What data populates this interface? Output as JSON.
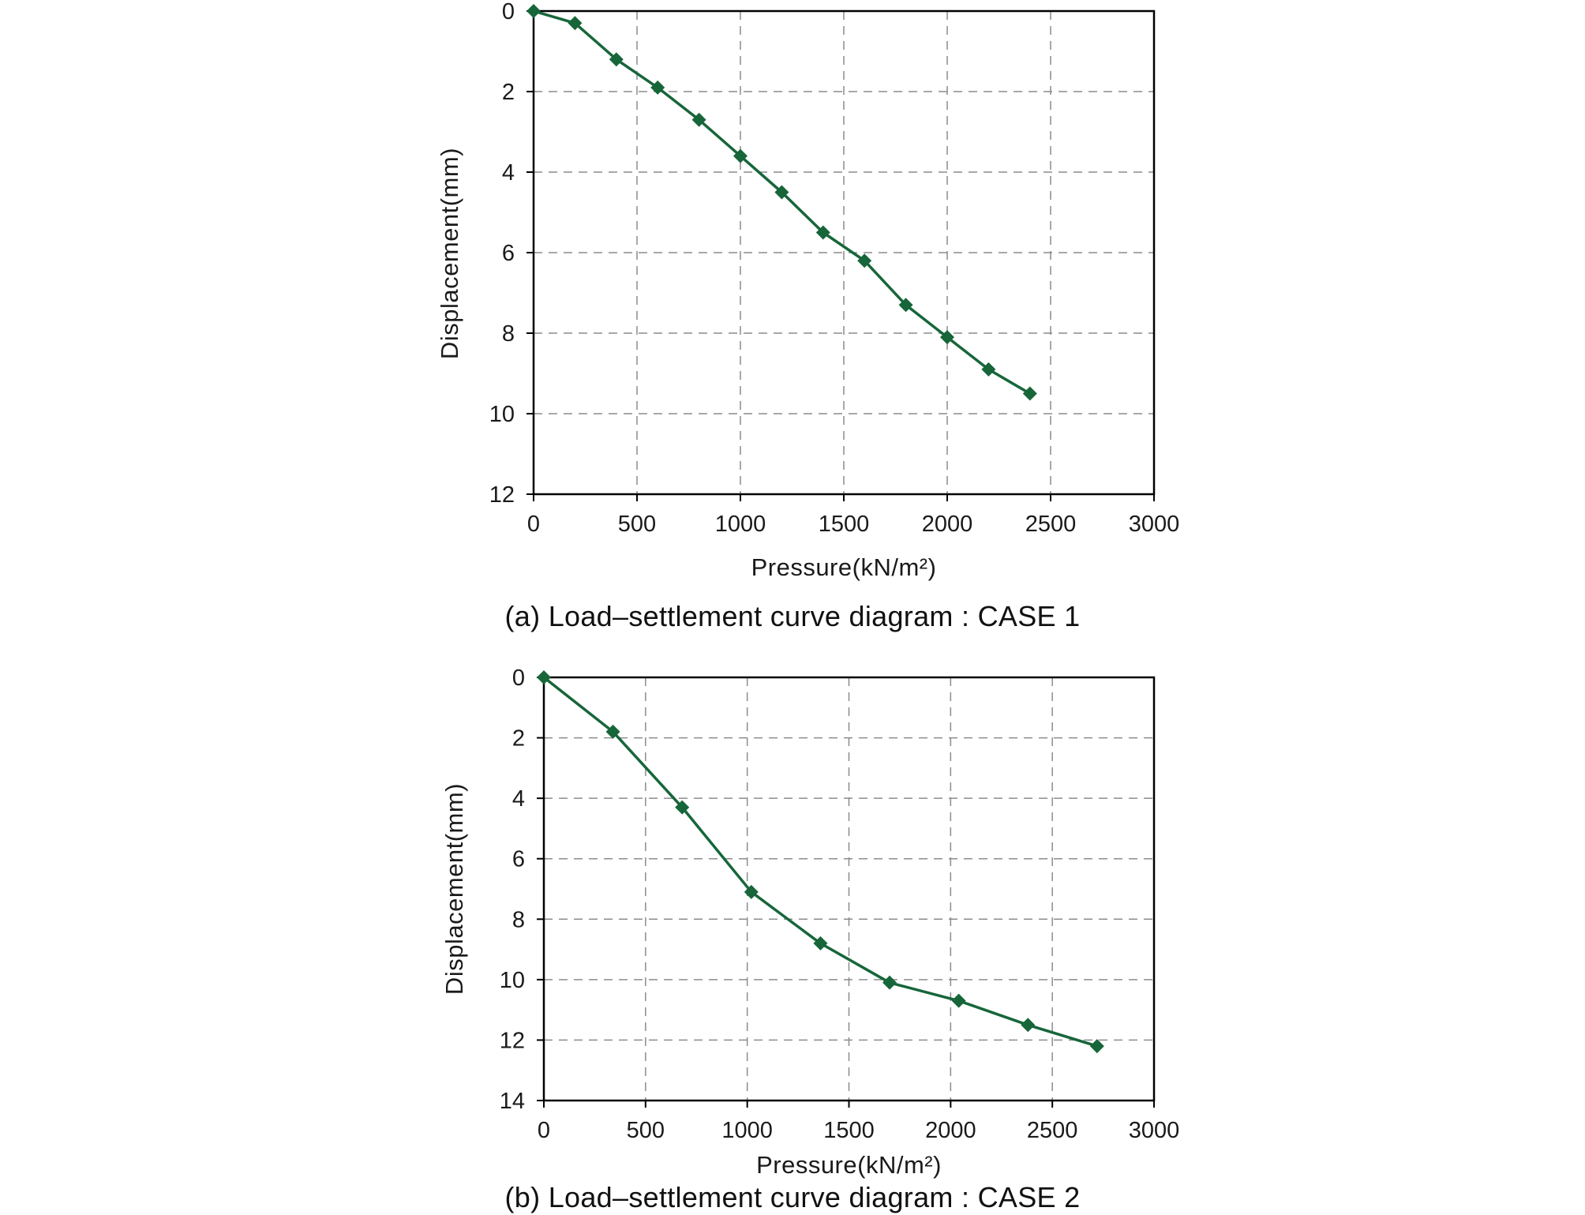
{
  "page": {
    "background": "#ffffff",
    "text_color": "#1a1a1a"
  },
  "chart_data": [
    {
      "type": "line",
      "title": "(a) Load–settlement curve diagram : CASE 1",
      "xlabel": "Pressure(kN/m²)",
      "ylabel": "Displacement(mm)",
      "xlim": [
        0,
        3000
      ],
      "ylim": [
        0,
        12
      ],
      "y_inverted": true,
      "x_ticks": [
        0,
        500,
        1000,
        1500,
        2000,
        2500,
        3000
      ],
      "y_ticks": [
        0,
        2,
        4,
        6,
        8,
        10,
        12
      ],
      "grid": "dashed",
      "grid_color": "#8c8c8c",
      "legend": "none",
      "series": [
        {
          "name": "CASE 1",
          "marker": "diamond",
          "color": "#17663a",
          "x": [
            0,
            200,
            400,
            600,
            800,
            1000,
            1200,
            1400,
            1600,
            1800,
            2000,
            2200,
            2400
          ],
          "y": [
            0,
            0.3,
            1.2,
            1.9,
            2.7,
            3.6,
            4.5,
            5.5,
            6.2,
            7.3,
            8.1,
            8.9,
            9.5
          ]
        }
      ]
    },
    {
      "type": "line",
      "title": "(b) Load–settlement curve diagram : CASE 2",
      "xlabel": "Pressure(kN/m²)",
      "ylabel": "Displacement(mm)",
      "xlim": [
        0,
        3000
      ],
      "ylim": [
        0,
        14
      ],
      "y_inverted": true,
      "x_ticks": [
        0,
        500,
        1000,
        1500,
        2000,
        2500,
        3000
      ],
      "y_ticks": [
        0,
        2,
        4,
        6,
        8,
        10,
        12,
        14
      ],
      "grid": "dashed",
      "grid_color": "#8c8c8c",
      "legend": "none",
      "series": [
        {
          "name": "CASE 2",
          "marker": "diamond",
          "color": "#17663a",
          "x": [
            0,
            340,
            680,
            1020,
            1360,
            1700,
            2040,
            2380,
            2720
          ],
          "y": [
            0,
            1.8,
            4.3,
            7.1,
            8.8,
            10.1,
            10.7,
            11.5,
            12.2
          ]
        }
      ]
    }
  ]
}
